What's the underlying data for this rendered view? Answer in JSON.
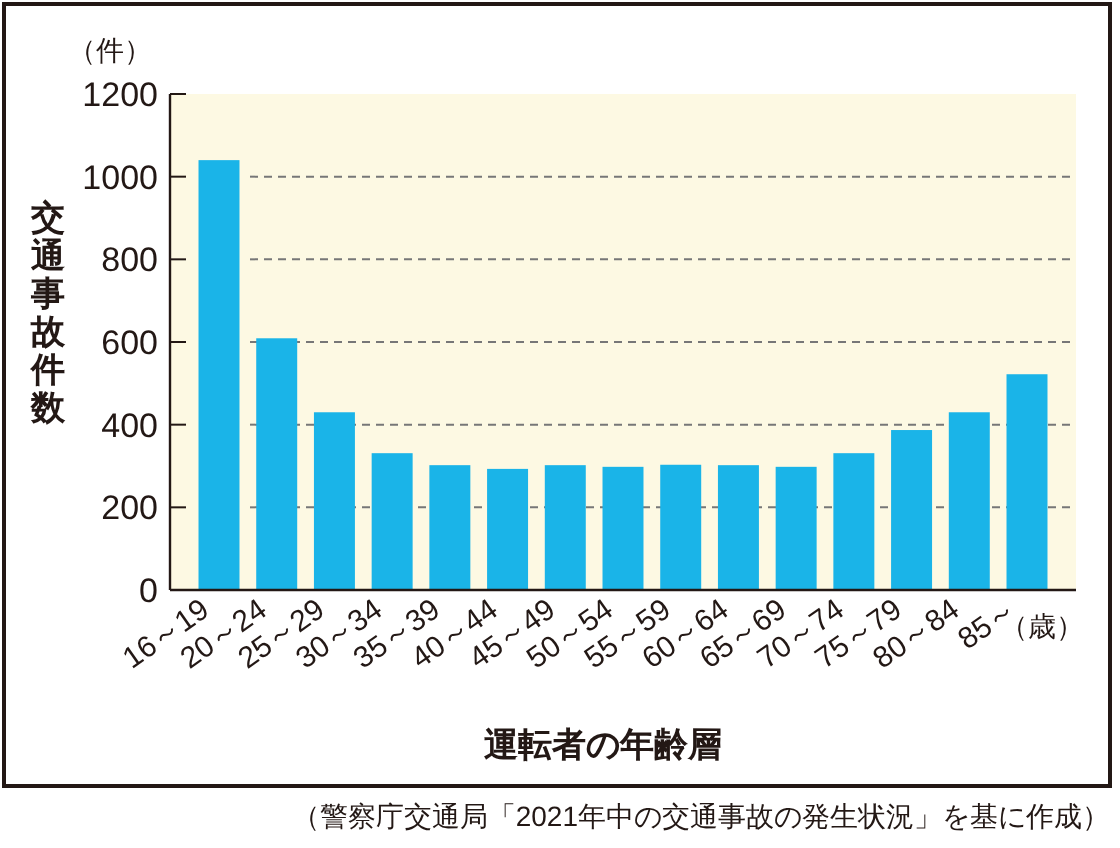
{
  "chart_data": {
    "type": "bar",
    "ylabel": "交通事故件数",
    "xlabel": "運転者の年齢層",
    "categories": [
      "16～19",
      "20～24",
      "25～29",
      "30～34",
      "35～39",
      "40～44",
      "45～49",
      "50～54",
      "55～59",
      "60～64",
      "65～69",
      "70～74",
      "75～79",
      "80～84",
      "85～"
    ],
    "values": [
      1040,
      609,
      430,
      331,
      302,
      293,
      302,
      298,
      303,
      302,
      298,
      331,
      387,
      430,
      522
    ],
    "color": "#1ab4e8",
    "ylim": [
      0,
      1200
    ],
    "yticks": [
      0,
      200,
      400,
      600,
      800,
      1000,
      1200
    ],
    "grid": "y",
    "annotations": [
      "（件）",
      "（歳）",
      "（警察庁交通局「2021年中の交通事故の発生状況」を基に作成）"
    ]
  }
}
